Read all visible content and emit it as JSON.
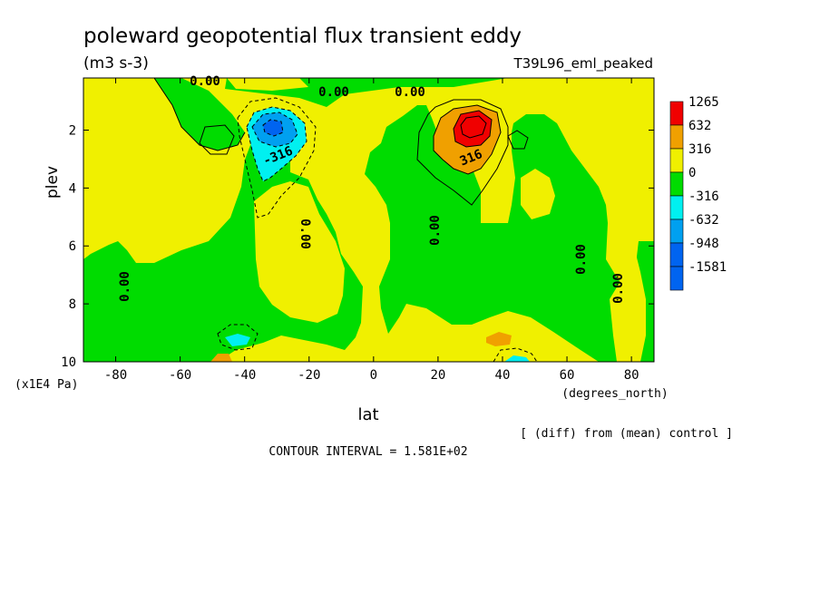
{
  "chart_data": {
    "type": "contour",
    "title": "poleward geopotential flux transient eddy",
    "units": "(m3 s-3)",
    "experiment": "T39L96_eml_peaked",
    "xlabel": "lat",
    "xunits": "(degrees_north)",
    "ylabel": "plev",
    "yunits": "(x1E4 Pa)",
    "xlim": [
      -90,
      87
    ],
    "ylim": [
      10,
      0.2
    ],
    "x_ticks": [
      "-80",
      "-60",
      "-40",
      "-20",
      "0",
      "20",
      "40",
      "60",
      "80"
    ],
    "y_ticks": [
      "2",
      "4",
      "6",
      "8",
      "10"
    ],
    "colorbar": {
      "labels": [
        "1265",
        "632",
        "316",
        "0",
        "-316",
        "-632",
        "-948",
        "-1581"
      ],
      "colors": [
        "#f00000",
        "#f0a000",
        "#f0f000",
        "#00dc00",
        "#00f0f0",
        "#00a0f0",
        "#0064f0",
        "#0064f0"
      ]
    },
    "contour_labels": [
      "0.00",
      "0.00",
      "0.00",
      "0.00",
      "0.00",
      "0.00",
      "0.00",
      "0.00",
      "-316",
      "316"
    ],
    "contour_interval_text": "CONTOUR INTERVAL = 1.581E+02",
    "note": "[ (diff) from (mean) control ]"
  }
}
